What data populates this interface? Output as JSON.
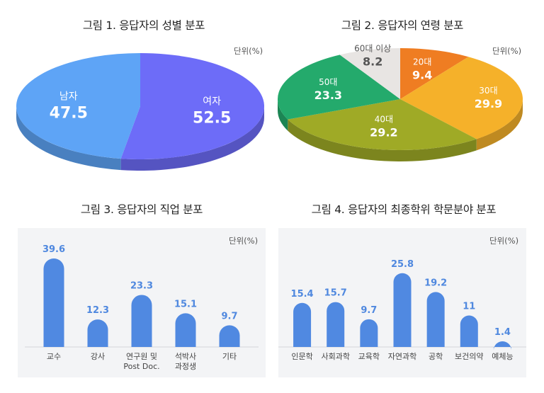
{
  "chart_data": [
    {
      "type": "pie",
      "title": "그림 1. 응답자의 성별 분포",
      "unit": "단위(%)",
      "slices": [
        {
          "label": "여자",
          "value": 52.5,
          "color": "#6d6cf8"
        },
        {
          "label": "남자",
          "value": 47.5,
          "color": "#5ea4f6"
        }
      ]
    },
    {
      "type": "pie",
      "title": "그림 2. 응답자의 연령 분포",
      "unit": "단위(%)",
      "slices": [
        {
          "label": "20대",
          "value": 9.4,
          "color": "#ef7d22"
        },
        {
          "label": "30대",
          "value": 29.9,
          "color": "#f5b12a"
        },
        {
          "label": "40대",
          "value": 29.2,
          "color": "#9faa26"
        },
        {
          "label": "50대",
          "value": 23.3,
          "color": "#24aa6c"
        },
        {
          "label": "60대 이상",
          "value": 8.2,
          "color": "#e8e5e3"
        }
      ]
    },
    {
      "type": "bar",
      "title": "그림 3. 응답자의 직업 분포",
      "unit": "단위(%)",
      "categories": [
        "교수",
        "강사",
        "연구원 및\nPost Doc.",
        "석박사\n과정생",
        "기타"
      ],
      "values": [
        39.6,
        12.3,
        23.3,
        15.1,
        9.7
      ],
      "value_labels": [
        "39.6",
        "12.3",
        "23.3",
        "15.1",
        "9.7"
      ],
      "color": "#5089e1"
    },
    {
      "type": "bar",
      "title": "그림 4. 응답자의 최종학위 학문분야 분포",
      "unit": "단위(%)",
      "categories": [
        "인문학",
        "사회과학",
        "교육학",
        "자연과학",
        "공학",
        "보건의약",
        "예체능"
      ],
      "values": [
        15.4,
        15.7,
        9.7,
        25.8,
        19.2,
        11,
        1.4
      ],
      "value_labels": [
        "15.4",
        "15.7",
        "9.7",
        "25.8",
        "19.2",
        "11",
        "1.4"
      ],
      "color": "#5089e1"
    }
  ]
}
